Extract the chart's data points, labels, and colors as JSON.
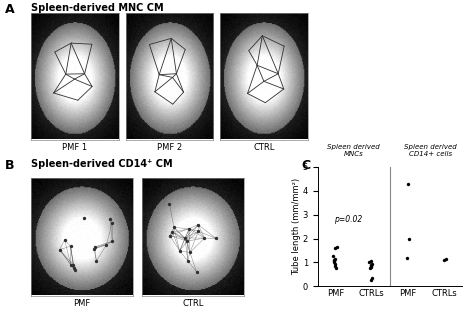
{
  "panel_A_title": "Spleen-derived MNC CM",
  "panel_B_title": "Spleen-derived CD14⁺ CM",
  "panel_A_labels": [
    "PMF 1",
    "PMF 2",
    "CTRL"
  ],
  "panel_B_labels": [
    "PMF",
    "CTRL"
  ],
  "scatter_title_left": "Spleen derived\nMNCs",
  "scatter_title_right": "Spleen derived\nCD14+ cells",
  "ylabel": "Tube length (mm/mm²)",
  "ylim": [
    0,
    5
  ],
  "yticks": [
    0,
    1,
    2,
    3,
    4,
    5
  ],
  "p_value_text": "p=0.02",
  "xticklabels": [
    "PMF",
    "CTRLs",
    "PMF",
    "CTRLs"
  ],
  "PMF_MNC_data": [
    1.6,
    1.65,
    1.25,
    1.15,
    1.1,
    1.05,
    1.0,
    0.95,
    0.85,
    0.75
  ],
  "CTRLs_MNC_data": [
    1.05,
    1.0,
    0.95,
    0.9,
    0.85,
    0.8,
    0.75,
    0.35,
    0.25
  ],
  "PMF_CD14_data": [
    4.3,
    2.0,
    1.2
  ],
  "CTRLs_CD14_data": [
    1.15,
    1.1
  ],
  "background_color": "#ffffff",
  "dot_color": "#000000",
  "panel_label_fontsize": 9,
  "title_fontsize": 7,
  "tick_fontsize": 6,
  "axis_label_fontsize": 6
}
